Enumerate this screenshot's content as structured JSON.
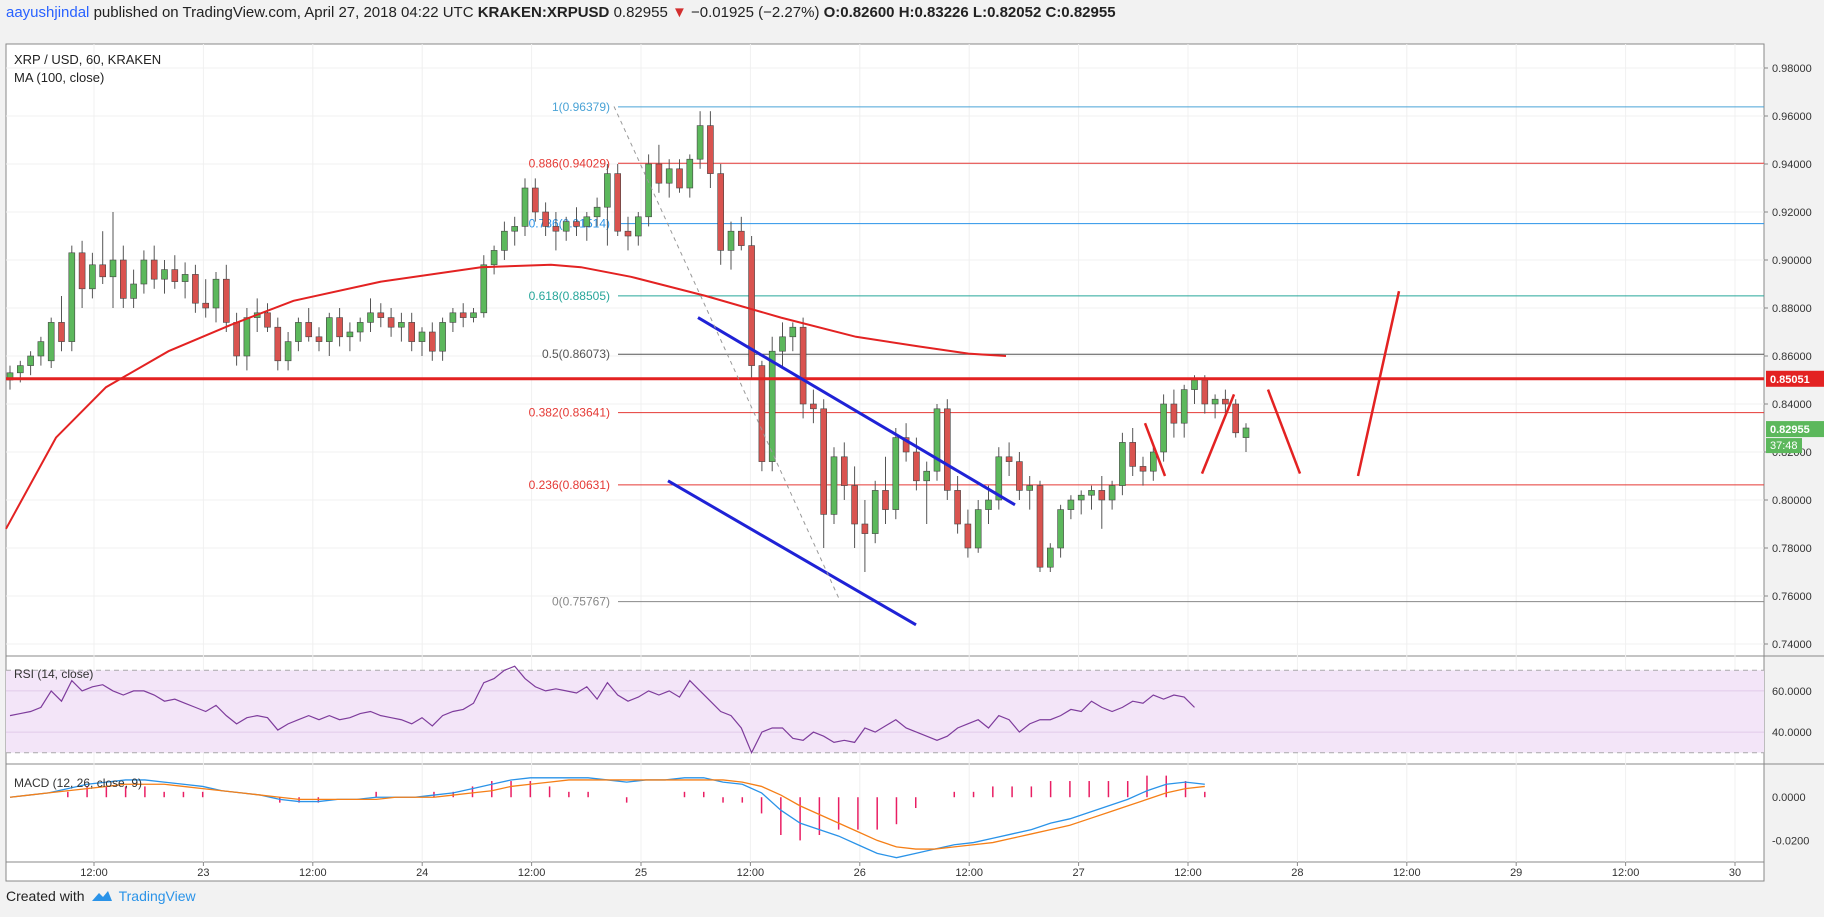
{
  "header": {
    "author": "aayushjindal",
    "published": "published on TradingView.com, April 27, 2018 04:22 UTC",
    "symbol": "KRAKEN:XRPUSD",
    "last": "0.82955",
    "change": "−0.01925 (−2.27%)",
    "o": "O:0.82600",
    "h": "H:0.83226",
    "l": "L:0.82052",
    "c": "C:0.82955"
  },
  "legend": {
    "title": "XRP / USD, 60, KRAKEN",
    "ma": "MA (100, close)"
  },
  "footer": {
    "created": "Created with",
    "brand": "TradingView"
  },
  "colors": {
    "up": "#5cb85c",
    "down": "#d9534f",
    "ma": "#e32222",
    "trend": "#1f22d6",
    "rsi": "#7e3c9c",
    "macd": "#2a93e8",
    "signal": "#f57f17"
  },
  "chart_data": [
    {
      "type": "candlestick",
      "ylim": [
        0.735,
        0.99
      ],
      "y_ticks": [
        "0.98000",
        "0.96000",
        "0.94000",
        "0.92000",
        "0.90000",
        "0.88000",
        "0.86000",
        "0.84000",
        "0.82000",
        "0.80000",
        "0.78000",
        "0.76000",
        "0.74000"
      ],
      "x_ticks": [
        "12:00",
        "23",
        "12:00",
        "24",
        "12:00",
        "25",
        "12:00",
        "26",
        "12:00",
        "27",
        "12:00",
        "28",
        "12:00",
        "29",
        "12:00",
        "30"
      ],
      "price_label": "0.82955",
      "countdown": "37:48",
      "level_label": "0.85051",
      "level": 0.85051,
      "fib": [
        {
          "label": "1(0.96379)",
          "value": 0.96379,
          "color": "#4aa3d6"
        },
        {
          "label": "0.886(0.94029)",
          "value": 0.94029,
          "color": "#e53935"
        },
        {
          "label": "0.786(0.91514)",
          "value": 0.91514,
          "color": "#2a93e8"
        },
        {
          "label": "0.618(0.88505)",
          "value": 0.88505,
          "color": "#26a69a"
        },
        {
          "label": "0.5(0.86073)",
          "value": 0.86073,
          "color": "#555555"
        },
        {
          "label": "0.382(0.83641)",
          "value": 0.83641,
          "color": "#e53935"
        },
        {
          "label": "0.236(0.80631)",
          "value": 0.80631,
          "color": "#e53935"
        },
        {
          "label": "0(0.75767)",
          "value": 0.75767,
          "color": "#888888"
        }
      ],
      "candles": [
        [
          0.85,
          0.856,
          0.846,
          0.853
        ],
        [
          0.853,
          0.858,
          0.849,
          0.856
        ],
        [
          0.856,
          0.862,
          0.852,
          0.86
        ],
        [
          0.86,
          0.868,
          0.856,
          0.866
        ],
        [
          0.858,
          0.876,
          0.855,
          0.874
        ],
        [
          0.874,
          0.885,
          0.862,
          0.866
        ],
        [
          0.866,
          0.906,
          0.862,
          0.903
        ],
        [
          0.903,
          0.908,
          0.88,
          0.888
        ],
        [
          0.888,
          0.903,
          0.884,
          0.898
        ],
        [
          0.898,
          0.912,
          0.89,
          0.893
        ],
        [
          0.893,
          0.92,
          0.88,
          0.9
        ],
        [
          0.9,
          0.906,
          0.88,
          0.884
        ],
        [
          0.884,
          0.896,
          0.88,
          0.89
        ],
        [
          0.89,
          0.904,
          0.886,
          0.9
        ],
        [
          0.9,
          0.906,
          0.888,
          0.892
        ],
        [
          0.892,
          0.9,
          0.886,
          0.896
        ],
        [
          0.896,
          0.902,
          0.888,
          0.891
        ],
        [
          0.891,
          0.899,
          0.884,
          0.894
        ],
        [
          0.894,
          0.898,
          0.878,
          0.882
        ],
        [
          0.882,
          0.892,
          0.876,
          0.88
        ],
        [
          0.88,
          0.895,
          0.874,
          0.892
        ],
        [
          0.892,
          0.898,
          0.87,
          0.874
        ],
        [
          0.874,
          0.878,
          0.856,
          0.86
        ],
        [
          0.86,
          0.88,
          0.854,
          0.876
        ],
        [
          0.876,
          0.884,
          0.87,
          0.878
        ],
        [
          0.878,
          0.882,
          0.87,
          0.872
        ],
        [
          0.872,
          0.876,
          0.854,
          0.858
        ],
        [
          0.858,
          0.87,
          0.854,
          0.866
        ],
        [
          0.866,
          0.876,
          0.862,
          0.874
        ],
        [
          0.874,
          0.88,
          0.866,
          0.868
        ],
        [
          0.868,
          0.872,
          0.862,
          0.866
        ],
        [
          0.866,
          0.878,
          0.86,
          0.876
        ],
        [
          0.876,
          0.88,
          0.864,
          0.868
        ],
        [
          0.868,
          0.874,
          0.862,
          0.87
        ],
        [
          0.87,
          0.876,
          0.866,
          0.874
        ],
        [
          0.874,
          0.884,
          0.87,
          0.878
        ],
        [
          0.878,
          0.882,
          0.872,
          0.876
        ],
        [
          0.876,
          0.88,
          0.868,
          0.872
        ],
        [
          0.872,
          0.878,
          0.866,
          0.874
        ],
        [
          0.874,
          0.878,
          0.862,
          0.866
        ],
        [
          0.866,
          0.872,
          0.86,
          0.87
        ],
        [
          0.87,
          0.874,
          0.858,
          0.862
        ],
        [
          0.862,
          0.876,
          0.858,
          0.874
        ],
        [
          0.874,
          0.88,
          0.87,
          0.878
        ],
        [
          0.878,
          0.882,
          0.872,
          0.876
        ],
        [
          0.876,
          0.88,
          0.874,
          0.878
        ],
        [
          0.878,
          0.902,
          0.876,
          0.898
        ],
        [
          0.898,
          0.906,
          0.894,
          0.904
        ],
        [
          0.904,
          0.916,
          0.9,
          0.912
        ],
        [
          0.912,
          0.918,
          0.906,
          0.914
        ],
        [
          0.914,
          0.934,
          0.91,
          0.93
        ],
        [
          0.93,
          0.934,
          0.916,
          0.92
        ],
        [
          0.92,
          0.924,
          0.91,
          0.914
        ],
        [
          0.914,
          0.92,
          0.904,
          0.912
        ],
        [
          0.912,
          0.918,
          0.908,
          0.916
        ],
        [
          0.916,
          0.922,
          0.91,
          0.914
        ],
        [
          0.914,
          0.92,
          0.908,
          0.918
        ],
        [
          0.918,
          0.926,
          0.914,
          0.922
        ],
        [
          0.922,
          0.94,
          0.906,
          0.936
        ],
        [
          0.936,
          0.94,
          0.91,
          0.912
        ],
        [
          0.912,
          0.918,
          0.904,
          0.91
        ],
        [
          0.91,
          0.92,
          0.906,
          0.918
        ],
        [
          0.918,
          0.944,
          0.914,
          0.94
        ],
        [
          0.94,
          0.948,
          0.928,
          0.932
        ],
        [
          0.932,
          0.942,
          0.926,
          0.938
        ],
        [
          0.938,
          0.942,
          0.928,
          0.93
        ],
        [
          0.93,
          0.944,
          0.926,
          0.942
        ],
        [
          0.942,
          0.962,
          0.938,
          0.956
        ],
        [
          0.956,
          0.962,
          0.93,
          0.936
        ],
        [
          0.936,
          0.94,
          0.898,
          0.904
        ],
        [
          0.904,
          0.916,
          0.896,
          0.912
        ],
        [
          0.912,
          0.918,
          0.904,
          0.906
        ],
        [
          0.906,
          0.91,
          0.85,
          0.856
        ],
        [
          0.856,
          0.858,
          0.812,
          0.816
        ],
        [
          0.816,
          0.868,
          0.812,
          0.862
        ],
        [
          0.862,
          0.874,
          0.855,
          0.868
        ],
        [
          0.868,
          0.874,
          0.862,
          0.872
        ],
        [
          0.872,
          0.876,
          0.834,
          0.84
        ],
        [
          0.84,
          0.846,
          0.832,
          0.838
        ],
        [
          0.838,
          0.842,
          0.78,
          0.794
        ],
        [
          0.794,
          0.822,
          0.79,
          0.818
        ],
        [
          0.818,
          0.824,
          0.8,
          0.806
        ],
        [
          0.806,
          0.814,
          0.78,
          0.79
        ],
        [
          0.79,
          0.8,
          0.77,
          0.786
        ],
        [
          0.786,
          0.808,
          0.782,
          0.804
        ],
        [
          0.804,
          0.818,
          0.79,
          0.796
        ],
        [
          0.796,
          0.83,
          0.792,
          0.826
        ],
        [
          0.826,
          0.832,
          0.816,
          0.82
        ],
        [
          0.82,
          0.826,
          0.804,
          0.808
        ],
        [
          0.808,
          0.816,
          0.79,
          0.812
        ],
        [
          0.812,
          0.84,
          0.808,
          0.838
        ],
        [
          0.838,
          0.842,
          0.8,
          0.804
        ],
        [
          0.804,
          0.81,
          0.786,
          0.79
        ],
        [
          0.79,
          0.796,
          0.776,
          0.78
        ],
        [
          0.78,
          0.8,
          0.778,
          0.796
        ],
        [
          0.796,
          0.806,
          0.79,
          0.8
        ],
        [
          0.8,
          0.822,
          0.796,
          0.818
        ],
        [
          0.818,
          0.824,
          0.81,
          0.816
        ],
        [
          0.816,
          0.82,
          0.8,
          0.804
        ],
        [
          0.804,
          0.81,
          0.796,
          0.806
        ],
        [
          0.806,
          0.808,
          0.77,
          0.772
        ],
        [
          0.772,
          0.782,
          0.77,
          0.78
        ],
        [
          0.78,
          0.798,
          0.776,
          0.796
        ],
        [
          0.796,
          0.802,
          0.792,
          0.8
        ],
        [
          0.8,
          0.804,
          0.794,
          0.802
        ],
        [
          0.802,
          0.806,
          0.796,
          0.804
        ],
        [
          0.804,
          0.81,
          0.788,
          0.8
        ],
        [
          0.8,
          0.808,
          0.796,
          0.806
        ],
        [
          0.806,
          0.828,
          0.802,
          0.824
        ],
        [
          0.824,
          0.83,
          0.81,
          0.814
        ],
        [
          0.814,
          0.818,
          0.806,
          0.812
        ],
        [
          0.812,
          0.822,
          0.808,
          0.82
        ],
        [
          0.82,
          0.844,
          0.816,
          0.84
        ],
        [
          0.84,
          0.846,
          0.826,
          0.832
        ],
        [
          0.832,
          0.848,
          0.826,
          0.846
        ],
        [
          0.846,
          0.852,
          0.84,
          0.85
        ],
        [
          0.85,
          0.852,
          0.836,
          0.84
        ],
        [
          0.84,
          0.844,
          0.834,
          0.842
        ],
        [
          0.842,
          0.846,
          0.836,
          0.84
        ],
        [
          0.84,
          0.842,
          0.826,
          0.828
        ],
        [
          0.826,
          0.832,
          0.82,
          0.83
        ]
      ],
      "ma100": [
        [
          0,
          0.788
        ],
        [
          40,
          0.826
        ],
        [
          80,
          0.847
        ],
        [
          130,
          0.862
        ],
        [
          180,
          0.873
        ],
        [
          230,
          0.883
        ],
        [
          300,
          0.891
        ],
        [
          380,
          0.897
        ],
        [
          436,
          0.898
        ],
        [
          460,
          0.897
        ],
        [
          500,
          0.893
        ],
        [
          560,
          0.885
        ],
        [
          620,
          0.876
        ],
        [
          680,
          0.868
        ],
        [
          730,
          0.864
        ],
        [
          770,
          0.861
        ],
        [
          800,
          0.86
        ]
      ],
      "channel_upper": [
        [
          0.816,
          0.876
        ],
        [
          0.881,
          0.798
        ]
      ],
      "channel_lower": [
        [
          0.803,
          0.808
        ],
        [
          0.861,
          0.748
        ]
      ],
      "fib_diagonal": [
        [
          0.7,
          0.964
        ],
        [
          0.8,
          0.758
        ]
      ],
      "projection": [
        [
          0.82,
          0.832
        ],
        [
          0.83,
          0.81
        ],
        [
          0.85,
          0.811
        ],
        [
          0.87,
          0.844
        ],
        [
          0.89,
          0.846
        ],
        [
          0.91,
          0.811
        ],
        [
          0.94,
          0.81
        ],
        [
          0.97,
          0.887
        ]
      ]
    },
    {
      "type": "line",
      "title": "RSI (14, close)",
      "ylim": [
        25,
        75
      ],
      "y_ticks": [
        "60.0000",
        "40.0000"
      ],
      "values": [
        48,
        49,
        50,
        52,
        60,
        55,
        65,
        60,
        62,
        63,
        60,
        58,
        60,
        60,
        58,
        55,
        56,
        54,
        52,
        50,
        53,
        48,
        44,
        47,
        48,
        47,
        41,
        44,
        46,
        48,
        46,
        48,
        46,
        47,
        49,
        50,
        48,
        47,
        46,
        44,
        47,
        43,
        48,
        50,
        51,
        54,
        64,
        66,
        70,
        72,
        66,
        62,
        60,
        61,
        60,
        59,
        62,
        56,
        64,
        58,
        55,
        57,
        60,
        58,
        60,
        57,
        65,
        60,
        55,
        50,
        48,
        42,
        30,
        40,
        42,
        42,
        37,
        36,
        40,
        38,
        35,
        36,
        35,
        42,
        40,
        43,
        46,
        42,
        40,
        38,
        36,
        38,
        42,
        44,
        46,
        42,
        48,
        46,
        40,
        44,
        46,
        46,
        48,
        51,
        50,
        55,
        52,
        50,
        52,
        55,
        54,
        58,
        56,
        58,
        57,
        52
      ]
    },
    {
      "type": "line",
      "title": "MACD (12, 26, close, 9)",
      "ylim": [
        -0.03,
        0.014
      ],
      "y_ticks": [
        "0.0000",
        "-0.0200"
      ],
      "macd": [
        0.0,
        0.001,
        0.002,
        0.004,
        0.006,
        0.007,
        0.008,
        0.008,
        0.007,
        0.006,
        0.005,
        0.003,
        0.002,
        0.001,
        -0.001,
        -0.002,
        -0.002,
        -0.001,
        -0.001,
        0.0,
        0.0,
        0.0,
        0.001,
        0.002,
        0.004,
        0.006,
        0.008,
        0.009,
        0.009,
        0.009,
        0.009,
        0.008,
        0.007,
        0.008,
        0.008,
        0.009,
        0.009,
        0.007,
        0.006,
        0.002,
        -0.006,
        -0.012,
        -0.015,
        -0.018,
        -0.022,
        -0.026,
        -0.028,
        -0.026,
        -0.024,
        -0.022,
        -0.021,
        -0.019,
        -0.017,
        -0.015,
        -0.012,
        -0.01,
        -0.007,
        -0.004,
        -0.001,
        0.003,
        0.006,
        0.007,
        0.006
      ],
      "signal": [
        0.0,
        0.001,
        0.002,
        0.003,
        0.004,
        0.005,
        0.006,
        0.006,
        0.006,
        0.005,
        0.004,
        0.003,
        0.002,
        0.001,
        0.0,
        -0.001,
        -0.001,
        -0.001,
        -0.001,
        -0.001,
        0.0,
        0.0,
        0.0,
        0.001,
        0.002,
        0.003,
        0.005,
        0.006,
        0.007,
        0.008,
        0.008,
        0.008,
        0.008,
        0.008,
        0.008,
        0.008,
        0.008,
        0.008,
        0.007,
        0.005,
        0.001,
        -0.004,
        -0.008,
        -0.012,
        -0.016,
        -0.02,
        -0.023,
        -0.024,
        -0.024,
        -0.023,
        -0.022,
        -0.021,
        -0.019,
        -0.017,
        -0.015,
        -0.013,
        -0.01,
        -0.007,
        -0.004,
        -0.001,
        0.002,
        0.004,
        0.005
      ]
    }
  ]
}
